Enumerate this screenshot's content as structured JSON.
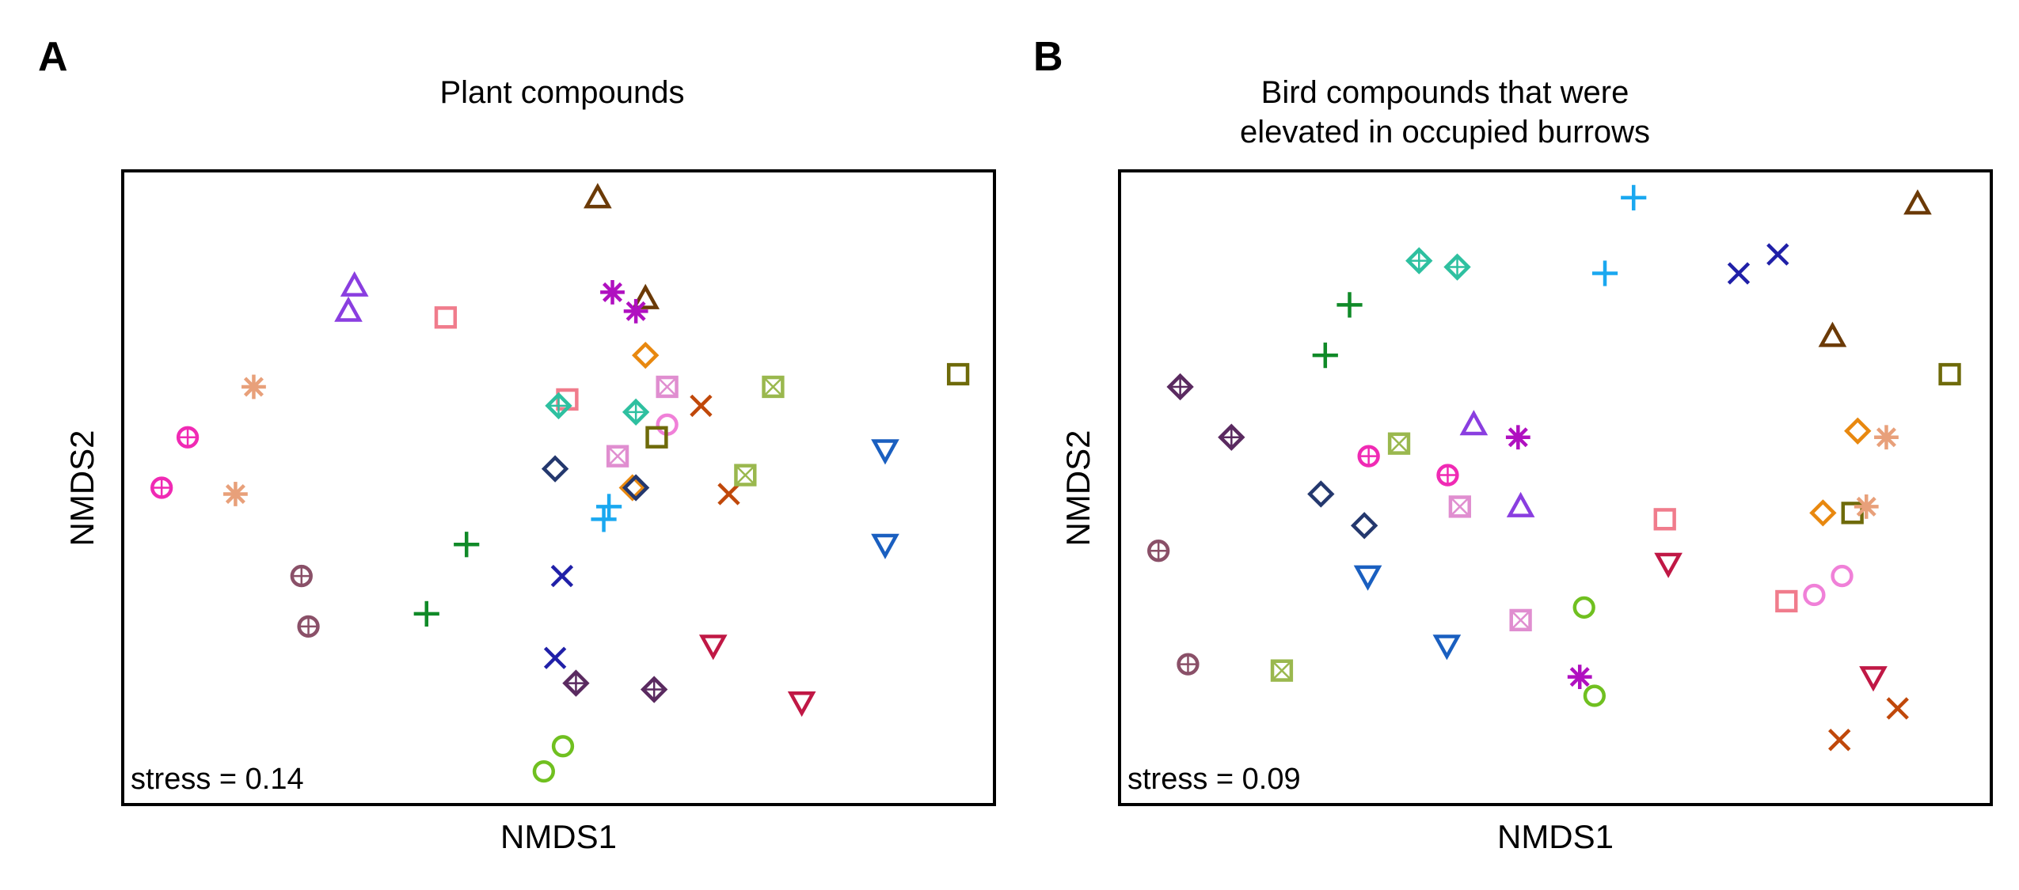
{
  "chart_data": [
    {
      "panel": "A",
      "type": "scatter",
      "title": "Plant compounds",
      "xlabel": "NMDS1",
      "ylabel": "NMDS2",
      "annotation": "stress = 0.14",
      "xlim": [
        0,
        100
      ],
      "ylim": [
        0,
        100
      ],
      "points": [
        {
          "x": 54.5,
          "y": 96,
          "marker": "triangle-up",
          "color": "#6b3a07"
        },
        {
          "x": 60.0,
          "y": 80,
          "marker": "triangle-up",
          "color": "#6b3a07"
        },
        {
          "x": 26.5,
          "y": 82,
          "marker": "triangle-up",
          "color": "#8a3ee0"
        },
        {
          "x": 25.8,
          "y": 78,
          "marker": "triangle-up",
          "color": "#8a3ee0"
        },
        {
          "x": 37.0,
          "y": 77,
          "marker": "square",
          "color": "#f07c8c"
        },
        {
          "x": 51.0,
          "y": 64,
          "marker": "square",
          "color": "#f07c8c"
        },
        {
          "x": 56.2,
          "y": 81,
          "marker": "asterisk",
          "color": "#b010c0"
        },
        {
          "x": 58.9,
          "y": 78,
          "marker": "asterisk",
          "color": "#b010c0"
        },
        {
          "x": 60.0,
          "y": 71,
          "marker": "diamond",
          "color": "#e8880f"
        },
        {
          "x": 58.5,
          "y": 50,
          "marker": "diamond",
          "color": "#e8880f"
        },
        {
          "x": 14.9,
          "y": 66,
          "marker": "asterisk",
          "color": "#e8a07a"
        },
        {
          "x": 12.8,
          "y": 49,
          "marker": "asterisk",
          "color": "#e8a07a"
        },
        {
          "x": 7.3,
          "y": 58,
          "marker": "circle-plus",
          "color": "#f02ab4"
        },
        {
          "x": 4.3,
          "y": 50,
          "marker": "circle-plus",
          "color": "#f02ab4"
        },
        {
          "x": 50.0,
          "y": 63,
          "marker": "diamond-plus",
          "color": "#2ec0a0"
        },
        {
          "x": 58.9,
          "y": 62,
          "marker": "diamond-plus",
          "color": "#2ec0a0"
        },
        {
          "x": 62.5,
          "y": 66,
          "marker": "square-x",
          "color": "#e08ed0"
        },
        {
          "x": 56.8,
          "y": 55,
          "marker": "square-x",
          "color": "#e08ed0"
        },
        {
          "x": 62.5,
          "y": 60,
          "marker": "circle",
          "color": "#f080d8"
        },
        {
          "x": 61.3,
          "y": 58,
          "marker": "square",
          "color": "#6e6a0a"
        },
        {
          "x": 96.0,
          "y": 68,
          "marker": "square",
          "color": "#6e6a0a"
        },
        {
          "x": 66.4,
          "y": 63,
          "marker": "x",
          "color": "#c0480a"
        },
        {
          "x": 69.6,
          "y": 49,
          "marker": "x",
          "color": "#c0480a"
        },
        {
          "x": 74.7,
          "y": 66,
          "marker": "square-x",
          "color": "#9ab84e"
        },
        {
          "x": 71.5,
          "y": 52,
          "marker": "square-x",
          "color": "#9ab84e"
        },
        {
          "x": 49.6,
          "y": 53,
          "marker": "diamond",
          "color": "#24386e"
        },
        {
          "x": 58.9,
          "y": 50,
          "marker": "diamond",
          "color": "#24386e"
        },
        {
          "x": 55.8,
          "y": 47,
          "marker": "plus",
          "color": "#1aa8f0"
        },
        {
          "x": 55.2,
          "y": 45,
          "marker": "plus",
          "color": "#1aa8f0"
        },
        {
          "x": 87.6,
          "y": 56,
          "marker": "triangle-down",
          "color": "#1a5fc0"
        },
        {
          "x": 87.6,
          "y": 41,
          "marker": "triangle-down",
          "color": "#1a5fc0"
        },
        {
          "x": 39.4,
          "y": 41,
          "marker": "plus",
          "color": "#108a28"
        },
        {
          "x": 34.8,
          "y": 30,
          "marker": "plus",
          "color": "#108a28"
        },
        {
          "x": 50.4,
          "y": 36,
          "marker": "x",
          "color": "#2020a8"
        },
        {
          "x": 49.6,
          "y": 23,
          "marker": "x",
          "color": "#2020a8"
        },
        {
          "x": 20.4,
          "y": 36,
          "marker": "circle-plus",
          "color": "#8a5068"
        },
        {
          "x": 21.2,
          "y": 28,
          "marker": "circle-plus",
          "color": "#8a5068"
        },
        {
          "x": 52.0,
          "y": 19,
          "marker": "diamond-plus",
          "color": "#5a2a60"
        },
        {
          "x": 61.0,
          "y": 18,
          "marker": "diamond-plus",
          "color": "#5a2a60"
        },
        {
          "x": 67.8,
          "y": 25,
          "marker": "triangle-down",
          "color": "#c01845"
        },
        {
          "x": 78.0,
          "y": 16,
          "marker": "triangle-down",
          "color": "#c01845"
        },
        {
          "x": 50.5,
          "y": 9,
          "marker": "circle",
          "color": "#70c020"
        },
        {
          "x": 48.3,
          "y": 5,
          "marker": "circle",
          "color": "#70c020"
        }
      ]
    },
    {
      "panel": "B",
      "type": "scatter",
      "title": [
        "Bird compounds that were",
        "elevated in occupied burrows"
      ],
      "xlabel": "NMDS1",
      "ylabel": "NMDS2",
      "annotation": "stress = 0.09",
      "xlim": [
        0,
        100
      ],
      "ylim": [
        0,
        100
      ],
      "points": [
        {
          "x": 59.0,
          "y": 96,
          "marker": "plus",
          "color": "#1aa8f0"
        },
        {
          "x": 55.7,
          "y": 84,
          "marker": "plus",
          "color": "#1aa8f0"
        },
        {
          "x": 91.7,
          "y": 95,
          "marker": "triangle-up",
          "color": "#6b3a07"
        },
        {
          "x": 81.9,
          "y": 74,
          "marker": "triangle-up",
          "color": "#6b3a07"
        },
        {
          "x": 34.3,
          "y": 86,
          "marker": "diamond-plus",
          "color": "#2ec0a0"
        },
        {
          "x": 38.7,
          "y": 85,
          "marker": "diamond-plus",
          "color": "#2ec0a0"
        },
        {
          "x": 71.1,
          "y": 84,
          "marker": "x",
          "color": "#2020a8"
        },
        {
          "x": 75.6,
          "y": 87,
          "marker": "x",
          "color": "#2020a8"
        },
        {
          "x": 26.3,
          "y": 79,
          "marker": "plus",
          "color": "#108a28"
        },
        {
          "x": 23.5,
          "y": 71,
          "marker": "plus",
          "color": "#108a28"
        },
        {
          "x": 95.4,
          "y": 68,
          "marker": "square",
          "color": "#6e6a0a"
        },
        {
          "x": 84.2,
          "y": 46,
          "marker": "square",
          "color": "#6e6a0a"
        },
        {
          "x": 6.8,
          "y": 66,
          "marker": "diamond-plus",
          "color": "#5a2a60"
        },
        {
          "x": 12.7,
          "y": 58,
          "marker": "diamond-plus",
          "color": "#5a2a60"
        },
        {
          "x": 40.6,
          "y": 60,
          "marker": "triangle-up",
          "color": "#8a3ee0"
        },
        {
          "x": 46.0,
          "y": 47,
          "marker": "triangle-up",
          "color": "#8a3ee0"
        },
        {
          "x": 45.7,
          "y": 58,
          "marker": "asterisk",
          "color": "#b010c0"
        },
        {
          "x": 52.8,
          "y": 20,
          "marker": "asterisk",
          "color": "#b010c0"
        },
        {
          "x": 32.0,
          "y": 57,
          "marker": "square-x",
          "color": "#9ab84e"
        },
        {
          "x": 18.5,
          "y": 21,
          "marker": "square-x",
          "color": "#9ab84e"
        },
        {
          "x": 28.5,
          "y": 55,
          "marker": "circle-plus",
          "color": "#f02ab4"
        },
        {
          "x": 37.6,
          "y": 52,
          "marker": "circle-plus",
          "color": "#f02ab4"
        },
        {
          "x": 84.8,
          "y": 59,
          "marker": "diamond",
          "color": "#e8880f"
        },
        {
          "x": 80.8,
          "y": 46,
          "marker": "diamond",
          "color": "#e8880f"
        },
        {
          "x": 88.1,
          "y": 58,
          "marker": "asterisk",
          "color": "#e8a07a"
        },
        {
          "x": 85.8,
          "y": 47,
          "marker": "asterisk",
          "color": "#e8a07a"
        },
        {
          "x": 23.0,
          "y": 49,
          "marker": "diamond",
          "color": "#24386e"
        },
        {
          "x": 28.0,
          "y": 44,
          "marker": "diamond",
          "color": "#24386e"
        },
        {
          "x": 39.0,
          "y": 47,
          "marker": "square-x",
          "color": "#e08ed0"
        },
        {
          "x": 46.0,
          "y": 29,
          "marker": "square-x",
          "color": "#e08ed0"
        },
        {
          "x": 62.6,
          "y": 45,
          "marker": "square",
          "color": "#f07c8c"
        },
        {
          "x": 76.6,
          "y": 32,
          "marker": "square",
          "color": "#f07c8c"
        },
        {
          "x": 4.3,
          "y": 40,
          "marker": "circle-plus",
          "color": "#8a5068"
        },
        {
          "x": 7.7,
          "y": 22,
          "marker": "circle-plus",
          "color": "#8a5068"
        },
        {
          "x": 28.4,
          "y": 36,
          "marker": "triangle-down",
          "color": "#1a5fc0"
        },
        {
          "x": 37.5,
          "y": 25,
          "marker": "triangle-down",
          "color": "#1a5fc0"
        },
        {
          "x": 63.0,
          "y": 38,
          "marker": "triangle-down",
          "color": "#c01845"
        },
        {
          "x": 86.6,
          "y": 20,
          "marker": "triangle-down",
          "color": "#c01845"
        },
        {
          "x": 53.3,
          "y": 31,
          "marker": "circle",
          "color": "#70c020"
        },
        {
          "x": 54.5,
          "y": 17,
          "marker": "circle",
          "color": "#70c020"
        },
        {
          "x": 79.8,
          "y": 33,
          "marker": "circle",
          "color": "#f080d8"
        },
        {
          "x": 83.0,
          "y": 36,
          "marker": "circle",
          "color": "#f080d8"
        },
        {
          "x": 89.4,
          "y": 15,
          "marker": "x",
          "color": "#c0480a"
        },
        {
          "x": 82.7,
          "y": 10,
          "marker": "x",
          "color": "#c0480a"
        }
      ]
    }
  ],
  "panels": {
    "a": {
      "letter": "A",
      "title_lines": [
        "Plant compounds"
      ],
      "xlabel": "NMDS1",
      "ylabel": "NMDS2",
      "stress": "stress = 0.14"
    },
    "b": {
      "letter": "B",
      "title_lines": [
        "Bird compounds that were",
        "elevated in occupied burrows"
      ],
      "xlabel": "NMDS1",
      "ylabel": "NMDS2",
      "stress": "stress = 0.09"
    }
  }
}
